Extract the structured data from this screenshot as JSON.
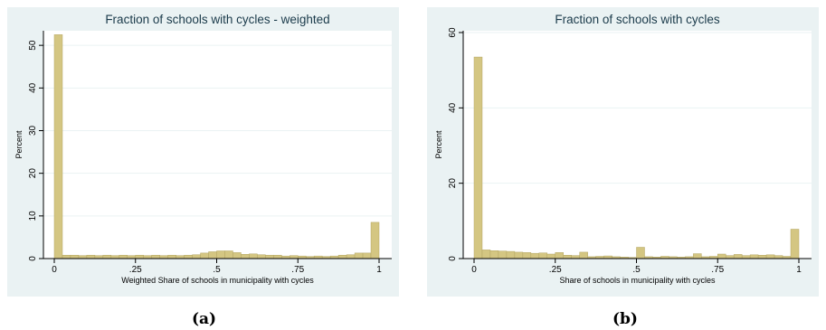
{
  "captions": [
    "(a)",
    "(b)"
  ],
  "chart_data": [
    {
      "type": "bar",
      "title": "Fraction of schools with cycles - weighted",
      "xlabel": "Weighted Share of schools in municipality with cycles",
      "ylabel": "Percent",
      "xlim": [
        0,
        1
      ],
      "ylim": [
        0,
        53
      ],
      "xticks": [
        0,
        0.25,
        0.5,
        0.75,
        1
      ],
      "xtick_labels": [
        "0",
        ".25",
        ".5",
        ".75",
        "1"
      ],
      "yticks": [
        0,
        10,
        20,
        30,
        40,
        50
      ],
      "ytick_labels": [
        "0",
        "10",
        "20",
        "30",
        "40",
        "50"
      ],
      "bin_width": 0.025,
      "series": [
        {
          "x": [
            0,
            0.025,
            0.05,
            0.075,
            0.1,
            0.125,
            0.15,
            0.175,
            0.2,
            0.225,
            0.25,
            0.275,
            0.3,
            0.325,
            0.35,
            0.375,
            0.4,
            0.425,
            0.45,
            0.475,
            0.5,
            0.525,
            0.55,
            0.575,
            0.6,
            0.625,
            0.65,
            0.675,
            0.7,
            0.725,
            0.75,
            0.775,
            0.8,
            0.825,
            0.85,
            0.875,
            0.9,
            0.925,
            0.95,
            0.975
          ],
          "values": [
            52.5,
            0.8,
            0.8,
            0.7,
            0.8,
            0.7,
            0.8,
            0.7,
            0.8,
            0.7,
            0.8,
            0.7,
            0.8,
            0.7,
            0.8,
            0.7,
            0.8,
            0.9,
            1.3,
            1.6,
            1.8,
            1.8,
            1.4,
            1.0,
            1.1,
            0.9,
            0.8,
            0.8,
            0.6,
            0.7,
            0.6,
            0.5,
            0.6,
            0.5,
            0.6,
            0.8,
            0.9,
            1.3,
            1.3,
            8.5
          ]
        }
      ],
      "bar_color": "#d4c682",
      "grid": true
    },
    {
      "type": "bar",
      "title": "Fraction of schools with cycles",
      "xlabel": "Share of schools in municipality with cycles",
      "ylabel": "Percent",
      "xlim": [
        0,
        1
      ],
      "ylim": [
        0,
        60
      ],
      "xticks": [
        0,
        0.25,
        0.5,
        0.75,
        1
      ],
      "xtick_labels": [
        "0",
        ".25",
        ".5",
        ".75",
        "1"
      ],
      "yticks": [
        0,
        20,
        40,
        60
      ],
      "ytick_labels": [
        "0",
        "20",
        "40",
        "60"
      ],
      "bin_width": 0.025,
      "series": [
        {
          "x": [
            0,
            0.025,
            0.05,
            0.075,
            0.1,
            0.125,
            0.15,
            0.175,
            0.2,
            0.225,
            0.25,
            0.275,
            0.3,
            0.325,
            0.35,
            0.375,
            0.4,
            0.425,
            0.45,
            0.475,
            0.5,
            0.525,
            0.55,
            0.575,
            0.6,
            0.625,
            0.65,
            0.675,
            0.7,
            0.725,
            0.75,
            0.775,
            0.8,
            0.825,
            0.85,
            0.875,
            0.9,
            0.925,
            0.95,
            0.975
          ],
          "values": [
            53.5,
            2.3,
            2.1,
            2.0,
            1.9,
            1.7,
            1.6,
            1.4,
            1.5,
            1.2,
            1.6,
            0.9,
            0.8,
            1.7,
            0.5,
            0.6,
            0.7,
            0.5,
            0.4,
            0.3,
            3.0,
            0.5,
            0.4,
            0.6,
            0.5,
            0.4,
            0.5,
            1.3,
            0.5,
            0.6,
            1.2,
            0.8,
            1.1,
            0.8,
            1.0,
            0.9,
            1.0,
            0.8,
            0.6,
            7.8
          ]
        }
      ],
      "bar_color": "#d4c682",
      "grid": true
    }
  ]
}
